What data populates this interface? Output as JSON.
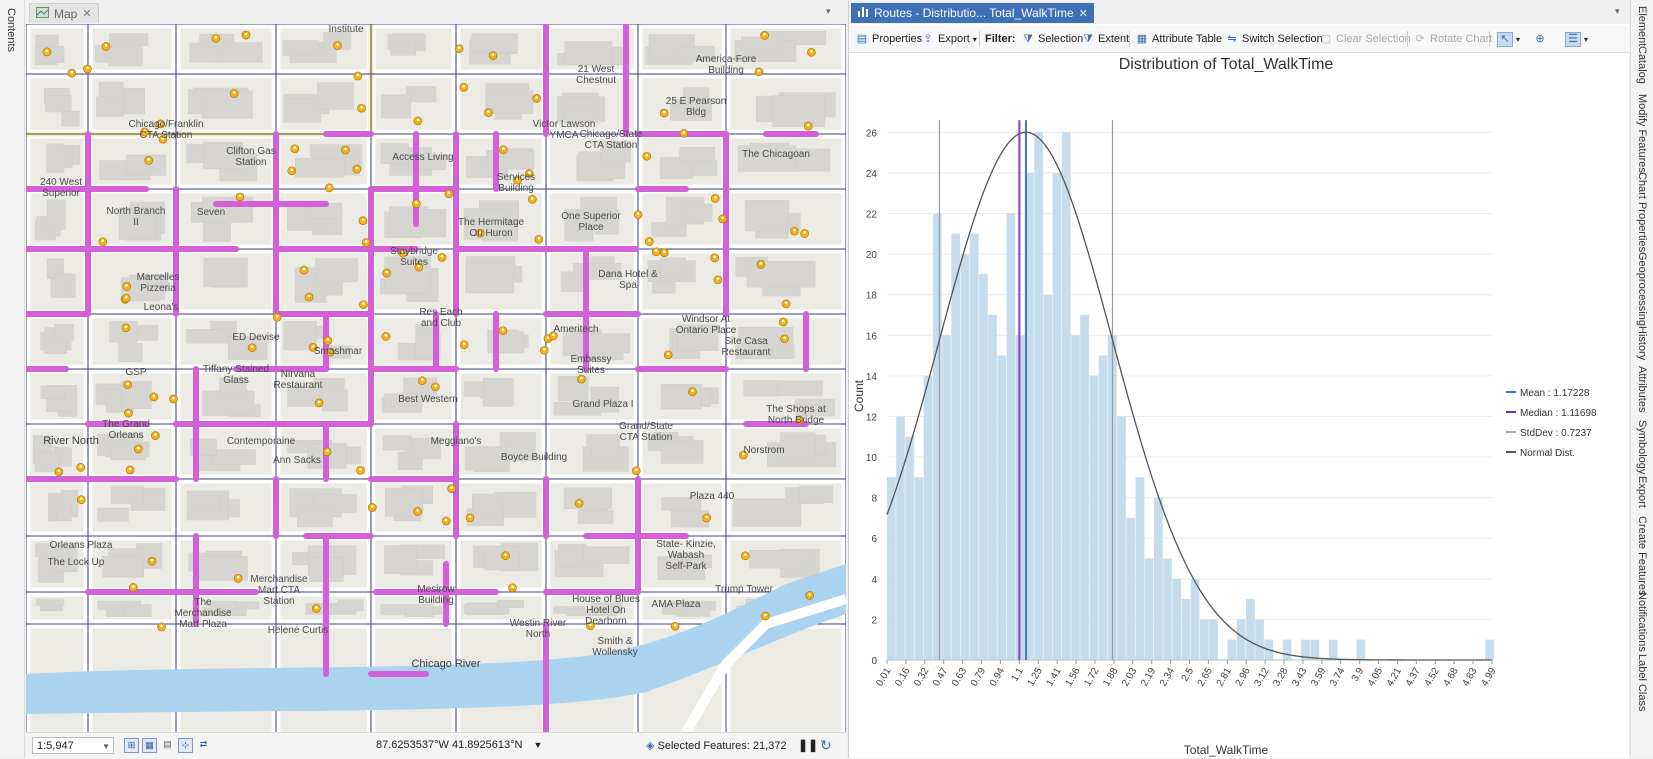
{
  "left_dock": {
    "contents_label": "Contents"
  },
  "map": {
    "tab_label": "Map",
    "scale_value": "1:5,947",
    "coordinates": "87.6253537°W 41.8925613°N",
    "selected_features": "Selected Features: 21,372",
    "labels": [
      "Institute",
      "21 West\nChestnut",
      "America-Fore\nBuilding",
      "25 E Pearson\nBldg",
      "Chicago/Franklin\nCTA Station",
      "Victor Lawson\nYMCA",
      "Chicago/State\nCTA Station",
      "The Chicagoan",
      "Clifton Gas\nStation",
      "Access Living",
      "Services\nBuilding",
      "240 West\nSuperior",
      "North Branch\nII",
      "Seven",
      "The Hermitage\nOn Huron",
      "One Superior\nPlace",
      "Staybridge\nSuites",
      "Marcelles\nPizzeria",
      "Leona's",
      "Dana Hotel &\nSpa",
      "Ameritech",
      "Res Each\nand Club",
      "ED Devise",
      "Windsor At\nOntario Place",
      "Site Casa\nRestaurant",
      "Tiffany Stained\nGlass",
      "Smashmar",
      "Embassy\nSuites",
      "GSP",
      "Nirvana\nRestaurant",
      "Best Western",
      "Grand Plaza I",
      "The Shops at\nNorth Bridge",
      "Grand/State\nCTA Station",
      "The Grand\nOrleans",
      "River North",
      "Contemporaine",
      "Meggiano's",
      "Norstrom",
      "Boyce Building",
      "Ann Sacks",
      "Plaza 440",
      "Orleans Plaza",
      "The Lock Up",
      "State- Kinzie,\nWabash\nSelf-Park",
      "Merchandise\nMart CTA\nStation",
      "Mesirow\nBuilding",
      "Trump Tower",
      "The\nMerchandise\nMart Plaza",
      "House of Blues\nHotel On\nDearborn",
      "AMA Plaza",
      "Helene Curtis",
      "Westin River\nNorth",
      "Smith &\nWollensky",
      "Chicago River"
    ]
  },
  "chart": {
    "tab_label": "Routes - Distributio... Total_WalkTime",
    "toolbar": {
      "properties": "Properties",
      "export": "Export",
      "filter": "Filter:",
      "selection": "Selection",
      "extent": "Extent",
      "attribute_table": "Attribute Table",
      "switch_selection": "Switch Selection",
      "clear_selection": "Clear Selection",
      "rotate_chart": "Rotate Chart"
    },
    "legend": [
      {
        "label": "Mean : 1.17228",
        "color": "#4472c4"
      },
      {
        "label": "Median : 1.11698",
        "color": "#7030a0"
      },
      {
        "label": "StdDev : 0.7237",
        "color": "#a9a9a9"
      },
      {
        "label": "Normal Dist.",
        "color": "#595959"
      }
    ]
  },
  "right_dock": {
    "tabs": [
      "Element",
      "Catalog",
      "Modify Features",
      "Chart Properties",
      "Geoprocessing",
      "History",
      "Attributes",
      "Symbology",
      "Export",
      "Create Features",
      "Notifications",
      "Label Class"
    ]
  },
  "chart_data": {
    "type": "bar",
    "title": "Distribution of Total_WalkTime",
    "xlabel": "Total_WalkTime",
    "ylabel": "Count",
    "ylim": [
      0,
      27
    ],
    "yticks": [
      0,
      2,
      4,
      6,
      8,
      10,
      12,
      14,
      16,
      18,
      20,
      22,
      24,
      26
    ],
    "xlim": [
      0.01,
      5.07
    ],
    "xtick_labels": [
      "0.01",
      "0.16",
      "0.32",
      "0.47",
      "0.63",
      "0.79",
      "0.94",
      "1.1",
      "1.25",
      "1.41",
      "1.56",
      "1.72",
      "1.88",
      "2.03",
      "2.19",
      "2.34",
      "2.5",
      "2.65",
      "2.81",
      "2.96",
      "3.12",
      "3.28",
      "3.43",
      "3.59",
      "3.74",
      "3.9",
      "4.05",
      "4.21",
      "4.37",
      "4.52",
      "4.68",
      "4.83",
      "4.99"
    ],
    "bin_width": 0.077,
    "bin_starts": [
      0.01,
      0.087,
      0.164,
      0.241,
      0.318,
      0.395,
      0.472,
      0.549,
      0.626,
      0.703,
      0.78,
      0.857,
      0.934,
      1.011,
      1.088,
      1.165,
      1.242,
      1.319,
      1.396,
      1.473,
      1.55,
      1.627,
      1.704,
      1.781,
      1.858,
      1.935,
      2.012,
      2.089,
      2.166,
      2.243,
      2.32,
      2.397,
      2.474,
      2.551,
      2.628,
      2.705,
      2.782,
      2.859,
      2.936,
      3.013,
      3.09,
      3.167,
      3.244,
      3.321,
      3.398,
      3.475,
      3.552,
      3.629,
      3.706,
      3.783,
      3.86,
      3.937,
      4.014,
      4.091,
      4.168,
      4.245,
      4.322,
      4.399,
      4.476,
      4.553,
      4.63,
      4.707,
      4.784,
      4.861,
      4.938,
      5.015
    ],
    "counts": [
      9,
      12,
      11,
      9,
      14,
      22,
      16,
      21,
      20,
      21,
      19,
      17,
      15,
      22,
      16,
      24,
      26,
      18,
      24,
      26,
      16,
      17,
      14,
      15,
      16,
      12,
      7,
      9,
      5,
      8,
      5,
      4,
      3,
      4,
      2,
      2,
      0,
      1,
      2,
      3,
      2,
      1,
      0,
      1,
      0,
      1,
      1,
      0,
      1,
      0,
      0,
      1,
      0,
      0,
      0,
      0,
      0,
      0,
      0,
      0,
      0,
      0,
      0,
      0,
      0,
      1
    ],
    "mean": 1.17228,
    "median": 1.11698,
    "stddev": 0.7237,
    "normal_peak": 26
  }
}
